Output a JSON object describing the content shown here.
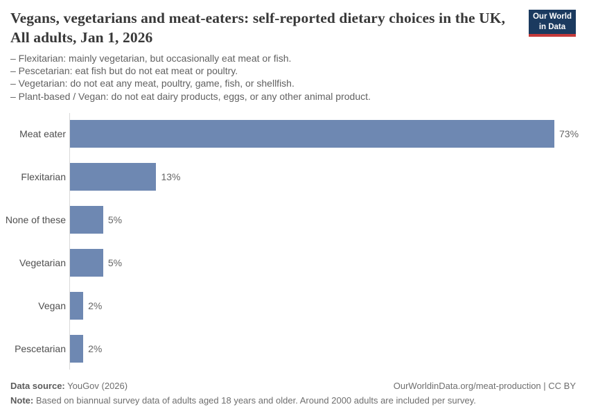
{
  "header": {
    "title": "Vegans, vegetarians and meat-eaters: self-reported dietary choices in the UK, All adults, Jan 1, 2026",
    "subtitle_lines": [
      "– Flexitarian: mainly vegetarian, but occasionally eat meat or fish.",
      "– Pescetarian: eat fish but do not eat meat or poultry.",
      "– Vegetarian: do not eat any meat, poultry, game, fish, or shellfish.",
      "– Plant-based / Vegan: do not eat dairy products, eggs, or any other animal product."
    ],
    "logo": {
      "line1": "Our World",
      "line2": "in Data"
    }
  },
  "chart_data": {
    "type": "bar",
    "orientation": "horizontal",
    "title": "Vegans, vegetarians and meat-eaters: self-reported dietary choices in the UK, All adults, Jan 1, 2026",
    "categories": [
      "Meat eater",
      "Flexitarian",
      "None of these",
      "Vegetarian",
      "Vegan",
      "Pescetarian"
    ],
    "values": [
      73,
      13,
      5,
      5,
      2,
      2
    ],
    "value_labels": [
      "73%",
      "13%",
      "5%",
      "5%",
      "2%",
      "2%"
    ],
    "unit": "%",
    "xlabel": "",
    "ylabel": "",
    "grid": false,
    "legend": false,
    "bar_color": "#6e88b2"
  },
  "footer": {
    "source_label": "Data source:",
    "source_value": " YouGov (2026)",
    "link": "OurWorldinData.org/meat-production | CC BY",
    "note_label": "Note:",
    "note_value": " Based on biannual survey data of adults aged 18 years and older. Around 2000 adults are included per survey."
  },
  "colors": {
    "bar": "#6e88b2",
    "logo_navy": "#1b3a5f",
    "logo_red": "#c53a3a",
    "title_text": "#383838",
    "subtitle_text": "#616161",
    "axis_line": "#d9d9d9",
    "category_label": "#4e4e4e",
    "value_label": "#666666",
    "footer_text": "#6e6e6e"
  }
}
